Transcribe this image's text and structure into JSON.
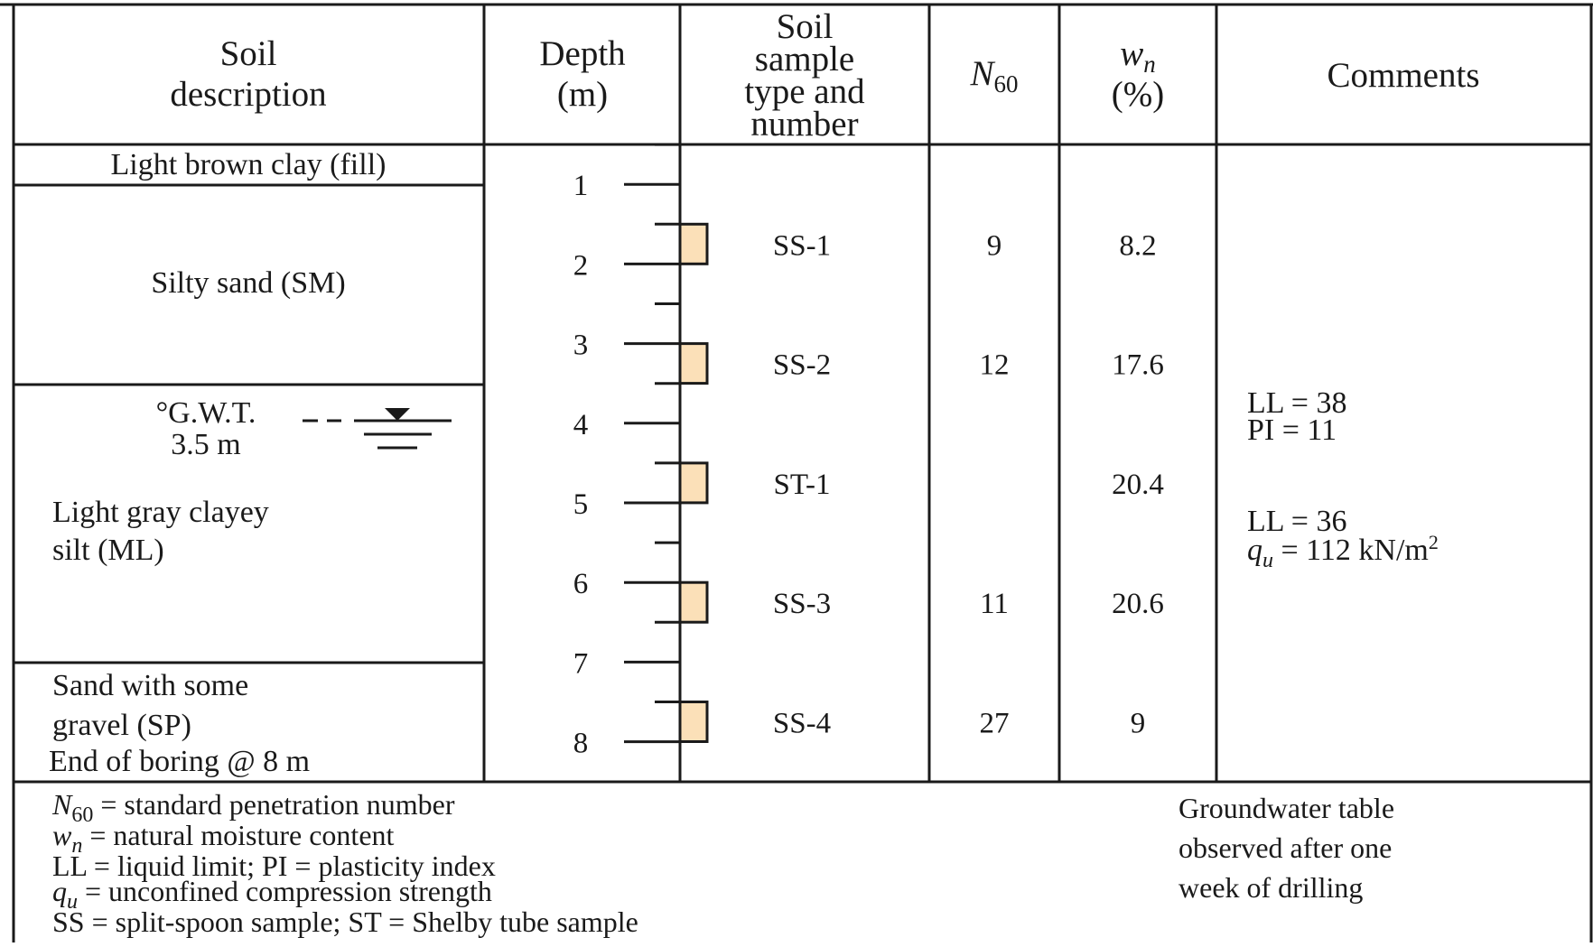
{
  "header": {
    "soil_description": [
      "Soil",
      "description"
    ],
    "depth": [
      "Depth",
      "(m)"
    ],
    "sample": [
      "Soil",
      "sample",
      "type and",
      "number"
    ],
    "n60": {
      "base": "N",
      "sub": "60"
    },
    "wn": {
      "base": "w",
      "sub": "n",
      "unit": "(%)"
    },
    "comments": "Comments"
  },
  "layers": {
    "fill": "Light brown clay (fill)",
    "silty_sand": "Silty sand (SM)",
    "gwt_label": "°G.W.T.",
    "gwt_depth": "3.5 m",
    "clayey_silt": [
      "Light gray clayey",
      "silt (ML)"
    ],
    "sand_gravel": [
      "Sand with some",
      "gravel (SP)"
    ],
    "end_boring": "End of boring @ 8 m"
  },
  "depth_ticks": [
    "1",
    "2",
    "3",
    "4",
    "5",
    "6",
    "7",
    "8"
  ],
  "samples": [
    {
      "id": "SS-1",
      "n60": "9",
      "wn": "8.2"
    },
    {
      "id": "SS-2",
      "n60": "12",
      "wn": "17.6"
    },
    {
      "id": "ST-1",
      "n60": "",
      "wn": "20.4"
    },
    {
      "id": "SS-3",
      "n60": "11",
      "wn": "20.6"
    },
    {
      "id": "SS-4",
      "n60": "27",
      "wn": "9"
    }
  ],
  "comments": {
    "ss2": [
      "LL = 38",
      "PI = 11"
    ],
    "st1_ll": "LL = 36",
    "st1_qu": {
      "base": "q",
      "sub": "u",
      "rest": " = 112 kN/m",
      "sup": "2"
    }
  },
  "legend": {
    "n60": {
      "base": "N",
      "sub": "60",
      "rest": " = standard penetration number"
    },
    "wn": {
      "base": "w",
      "sub": "n",
      "rest": " = natural moisture content"
    },
    "ll_pi": "LL = liquid limit; PI = plasticity index",
    "qu": {
      "base": "q",
      "sub": "u",
      "rest": " = unconfined compression strength"
    },
    "ss_st": "SS = split-spoon sample; ST = Shelby tube sample"
  },
  "note": [
    "Groundwater table",
    "observed after one",
    "week of drilling"
  ],
  "colors": {
    "sample_fill": "#fbe0b8",
    "line": "#1a1a1a"
  }
}
